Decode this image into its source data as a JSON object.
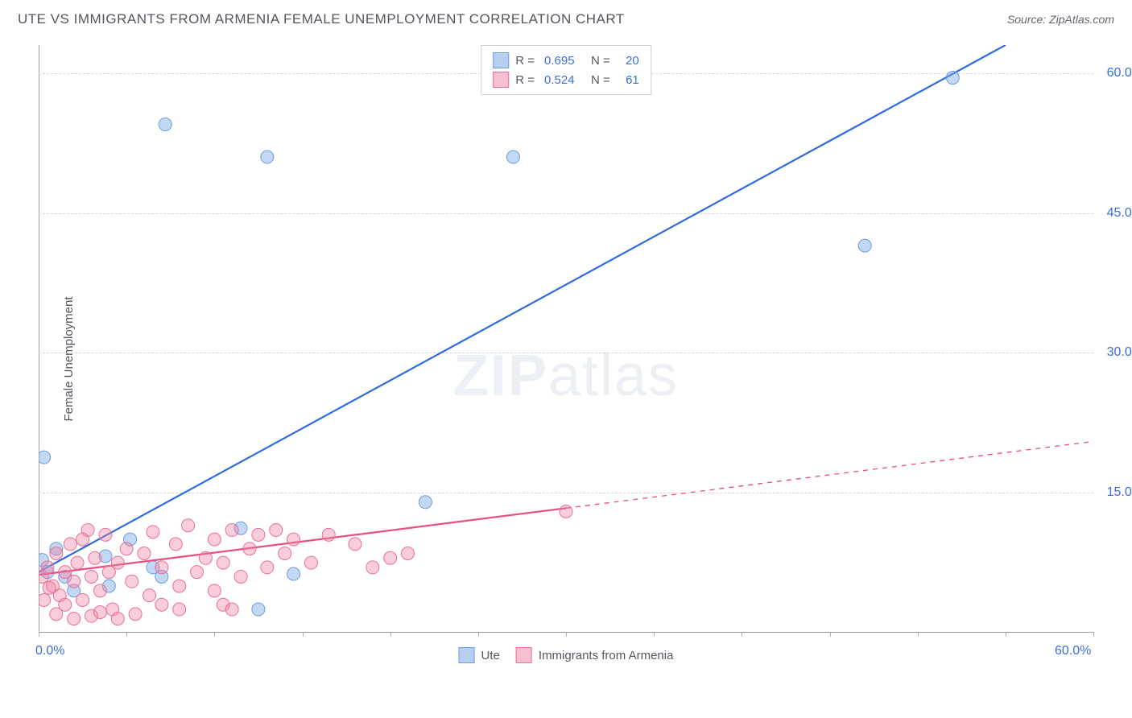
{
  "header": {
    "title": "UTE VS IMMIGRANTS FROM ARMENIA FEMALE UNEMPLOYMENT CORRELATION CHART",
    "source": "Source: ZipAtlas.com"
  },
  "y_axis_label": "Female Unemployment",
  "watermark": {
    "zip": "ZIP",
    "atlas": "atlas"
  },
  "chart": {
    "type": "scatter",
    "xlim": [
      0,
      60
    ],
    "ylim": [
      0,
      63
    ],
    "x_ticks": [
      0,
      5,
      10,
      15,
      20,
      25,
      30,
      35,
      40,
      45,
      50,
      55,
      60
    ],
    "x_tick_labels": [
      {
        "value": 0,
        "label": "0.0%"
      },
      {
        "value": 60,
        "label": "60.0%"
      }
    ],
    "y_tick_labels": [
      {
        "value": 15,
        "label": "15.0%"
      },
      {
        "value": 30,
        "label": "30.0%"
      },
      {
        "value": 45,
        "label": "45.0%"
      },
      {
        "value": 60,
        "label": "60.0%"
      }
    ],
    "grid_color": "#d5d5d8",
    "axis_color": "#9a9aa0",
    "background_color": "#ffffff",
    "series": [
      {
        "key": "ute",
        "label": "Ute",
        "color_fill": "rgba(123,169,227,0.45)",
        "color_stroke": "#6a9de0",
        "swatch_fill": "#b8d0ef",
        "swatch_border": "#6a9de0",
        "marker_radius": 8,
        "R": "0.695",
        "N": "20",
        "trend": {
          "color": "#2d6cdf",
          "width": 2.2,
          "x1": 0,
          "y1": 6.5,
          "x2": 55,
          "y2": 63,
          "dash_after_x": null
        },
        "points": [
          {
            "x": 0.3,
            "y": 18.8
          },
          {
            "x": 7.2,
            "y": 54.5
          },
          {
            "x": 13.0,
            "y": 51.0
          },
          {
            "x": 27.0,
            "y": 51.0
          },
          {
            "x": 52.0,
            "y": 59.5
          },
          {
            "x": 47.0,
            "y": 41.5
          },
          {
            "x": 22.0,
            "y": 14.0
          },
          {
            "x": 11.5,
            "y": 11.2
          },
          {
            "x": 5.2,
            "y": 10.0
          },
          {
            "x": 6.5,
            "y": 7.0
          },
          {
            "x": 3.8,
            "y": 8.2
          },
          {
            "x": 1.0,
            "y": 9.0
          },
          {
            "x": 1.5,
            "y": 6.0
          },
          {
            "x": 0.5,
            "y": 6.5
          },
          {
            "x": 12.5,
            "y": 2.5
          },
          {
            "x": 7.0,
            "y": 6.0
          },
          {
            "x": 14.5,
            "y": 6.3
          },
          {
            "x": 2.0,
            "y": 4.5
          },
          {
            "x": 0.2,
            "y": 7.8
          },
          {
            "x": 4.0,
            "y": 5.0
          }
        ]
      },
      {
        "key": "armenia",
        "label": "Immigrants from Armenia",
        "color_fill": "rgba(240,130,160,0.40)",
        "color_stroke": "#ea6f96",
        "swatch_fill": "#f6c0d0",
        "swatch_border": "#ea6f96",
        "marker_radius": 8,
        "R": "0.524",
        "N": "61",
        "trend": {
          "color": "#e84f7e",
          "width": 2.2,
          "x1": 0,
          "y1": 6.2,
          "x2": 60,
          "y2": 20.5,
          "dash_after_x": 30
        },
        "points": [
          {
            "x": 0.2,
            "y": 6.0
          },
          {
            "x": 0.5,
            "y": 7.0
          },
          {
            "x": 0.8,
            "y": 5.0
          },
          {
            "x": 1.0,
            "y": 8.5
          },
          {
            "x": 1.2,
            "y": 4.0
          },
          {
            "x": 1.5,
            "y": 6.5
          },
          {
            "x": 1.8,
            "y": 9.5
          },
          {
            "x": 2.0,
            "y": 5.5
          },
          {
            "x": 2.2,
            "y": 7.5
          },
          {
            "x": 2.5,
            "y": 3.5
          },
          {
            "x": 2.8,
            "y": 11.0
          },
          {
            "x": 3.0,
            "y": 6.0
          },
          {
            "x": 3.2,
            "y": 8.0
          },
          {
            "x": 3.5,
            "y": 4.5
          },
          {
            "x": 3.8,
            "y": 10.5
          },
          {
            "x": 4.0,
            "y": 6.5
          },
          {
            "x": 4.2,
            "y": 2.5
          },
          {
            "x": 4.5,
            "y": 7.5
          },
          {
            "x": 1.0,
            "y": 2.0
          },
          {
            "x": 5.0,
            "y": 9.0
          },
          {
            "x": 5.3,
            "y": 5.5
          },
          {
            "x": 2.0,
            "y": 1.5
          },
          {
            "x": 6.0,
            "y": 8.5
          },
          {
            "x": 6.3,
            "y": 4.0
          },
          {
            "x": 1.5,
            "y": 3.0
          },
          {
            "x": 7.0,
            "y": 7.0
          },
          {
            "x": 3.0,
            "y": 1.8
          },
          {
            "x": 7.8,
            "y": 9.5
          },
          {
            "x": 8.0,
            "y": 5.0
          },
          {
            "x": 8.5,
            "y": 11.5
          },
          {
            "x": 9.0,
            "y": 6.5
          },
          {
            "x": 9.5,
            "y": 8.0
          },
          {
            "x": 10.0,
            "y": 10.0
          },
          {
            "x": 10.5,
            "y": 7.5
          },
          {
            "x": 10.0,
            "y": 4.5
          },
          {
            "x": 11.0,
            "y": 11.0
          },
          {
            "x": 11.5,
            "y": 6.0
          },
          {
            "x": 12.0,
            "y": 9.0
          },
          {
            "x": 12.5,
            "y": 10.5
          },
          {
            "x": 13.0,
            "y": 7.0
          },
          {
            "x": 13.5,
            "y": 11.0
          },
          {
            "x": 14.0,
            "y": 8.5
          },
          {
            "x": 14.5,
            "y": 10.0
          },
          {
            "x": 10.5,
            "y": 3.0
          },
          {
            "x": 15.5,
            "y": 7.5
          },
          {
            "x": 8.0,
            "y": 2.5
          },
          {
            "x": 16.5,
            "y": 10.5
          },
          {
            "x": 5.5,
            "y": 2.0
          },
          {
            "x": 11.0,
            "y": 2.5
          },
          {
            "x": 18.0,
            "y": 9.5
          },
          {
            "x": 19.0,
            "y": 7.0
          },
          {
            "x": 7.0,
            "y": 3.0
          },
          {
            "x": 20.0,
            "y": 8.0
          },
          {
            "x": 21.0,
            "y": 8.5
          },
          {
            "x": 30.0,
            "y": 13.0
          },
          {
            "x": 4.5,
            "y": 1.5
          },
          {
            "x": 0.3,
            "y": 3.5
          },
          {
            "x": 0.6,
            "y": 4.8
          },
          {
            "x": 2.5,
            "y": 10.0
          },
          {
            "x": 6.5,
            "y": 10.8
          },
          {
            "x": 3.5,
            "y": 2.2
          }
        ]
      }
    ]
  }
}
